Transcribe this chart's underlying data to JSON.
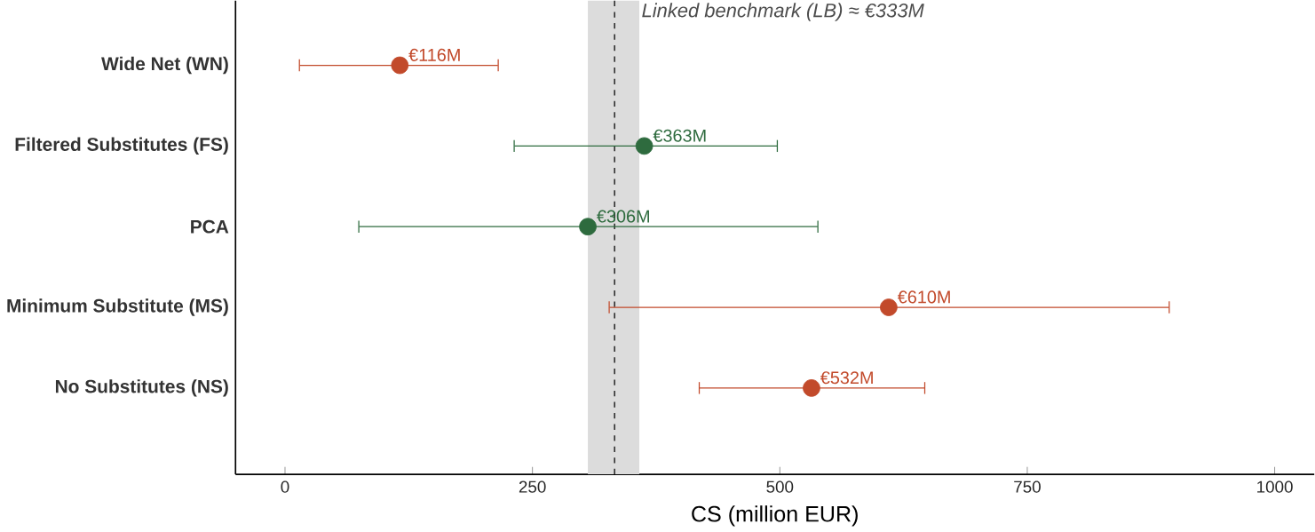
{
  "chart_data": {
    "type": "scatter",
    "orientation": "horizontal",
    "xlabel": "CS (million EUR)",
    "categories": [
      "Wide Net (WN)",
      "Filtered Substitutes (FS)",
      "PCA",
      "Minimum Substitute (MS)",
      "No Substitutes (NS)"
    ],
    "values": [
      116,
      363,
      306,
      610,
      532
    ],
    "colors": [
      "#c24a2b",
      "#2e6b3e",
      "#2e6b3e",
      "#c24a2b",
      "#c24a2b"
    ],
    "errors": [
      [
        14,
        216
      ],
      [
        231,
        498
      ],
      [
        74,
        539
      ],
      [
        327,
        894
      ],
      [
        418,
        647
      ]
    ],
    "value_labels": [
      "€116M",
      "€363M",
      "€306M",
      "€610M",
      "€532M"
    ],
    "xlim": [
      -50,
      1040
    ],
    "xticks": [
      0,
      250,
      500,
      750,
      1000
    ],
    "ref_lines": [
      {
        "axis": "x",
        "value": 333,
        "label": "Linked benchmark (LB) ≈ €333M",
        "color": "#000000",
        "line_style": "dashed"
      }
    ],
    "bands": [
      {
        "axis": "x",
        "from": 306,
        "to": 358,
        "color": "#dcdcdc"
      }
    ]
  }
}
